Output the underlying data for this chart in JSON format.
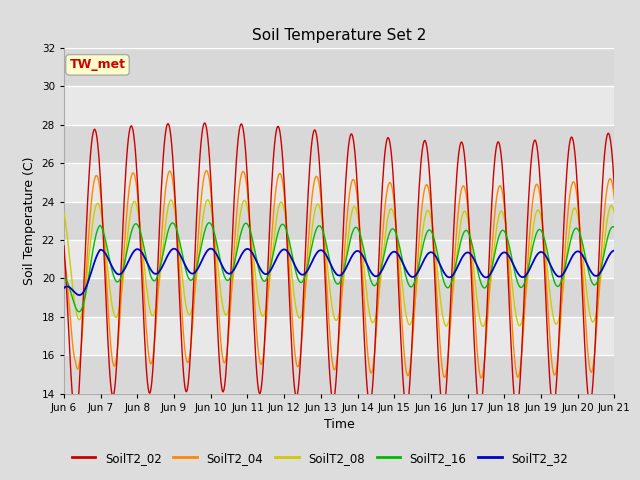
{
  "title": "Soil Temperature Set 2",
  "xlabel": "Time",
  "ylabel": "Soil Temperature (C)",
  "ylim": [
    14,
    32
  ],
  "x_tick_labels": [
    "Jun 6",
    "Jun 7",
    "Jun 8",
    "Jun 9",
    "Jun 10",
    "Jun 11",
    "Jun 12",
    "Jun 13",
    "Jun 14",
    "Jun 15",
    "Jun 16",
    "Jun 17",
    "Jun 18",
    "Jun 19",
    "Jun 20",
    "Jun 21"
  ],
  "annotation_text": "TW_met",
  "annotation_color": "#cc0000",
  "annotation_bg": "#ffffcc",
  "annotation_edge": "#aaaaaa",
  "series_colors": {
    "SoilT2_02": "#cc0000",
    "SoilT2_04": "#ff8800",
    "SoilT2_08": "#cccc00",
    "SoilT2_16": "#00bb00",
    "SoilT2_32": "#0000cc"
  },
  "bg_color": "#dddddd",
  "plot_bg": "#e8e8e8",
  "grid_color": "#ffffff",
  "title_fontsize": 11,
  "axis_label_fontsize": 9,
  "tick_fontsize": 7.5,
  "legend_fontsize": 8.5
}
